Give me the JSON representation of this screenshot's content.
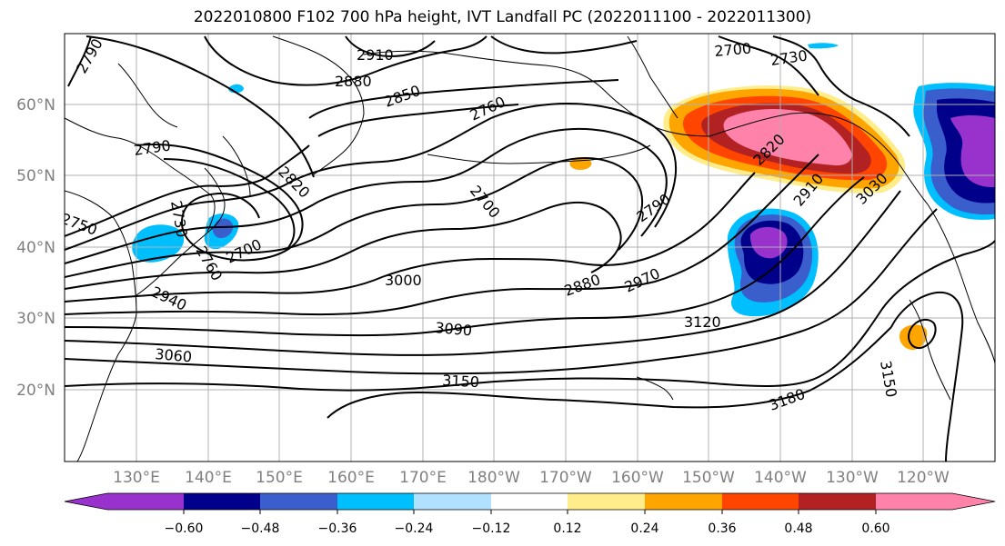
{
  "title": "2022010800 F102 700 hPa height, IVT Landfall PC (2022011100 - 2022011300)",
  "lat_labels": [
    "60°N",
    "50°N",
    "40°N",
    "30°N",
    "20°N"
  ],
  "lon_labels": [
    "130°E",
    "140°E",
    "150°E",
    "160°E",
    "170°E",
    "180°W",
    "170°W",
    "160°W",
    "150°W",
    "140°W",
    "130°W",
    "120°W"
  ],
  "contour_labels": [
    "2790",
    "2910",
    "2880",
    "2850",
    "2760",
    "2700",
    "2730",
    "2790",
    "2820",
    "2700",
    "2730",
    "2760",
    "2700",
    "3000",
    "2940",
    "2820",
    "2790",
    "2910",
    "3030",
    "2880",
    "2970",
    "3090",
    "3120",
    "3060",
    "3150",
    "3180",
    "3150",
    "2750"
  ],
  "colorbar": {
    "ticks": [
      "−0.60",
      "−0.48",
      "−0.36",
      "−0.24",
      "−0.12",
      "0.12",
      "0.24",
      "0.36",
      "0.48",
      "0.60"
    ],
    "colors": [
      "#9932cc",
      "#00008b",
      "#3a5fcd",
      "#00bfff",
      "#b0e2ff",
      "#ffffff",
      "#ffec8b",
      "#ffa500",
      "#ff4500",
      "#b22222",
      "#ff82ab",
      "#ff82ab"
    ]
  },
  "colors": {
    "contour": "#000000",
    "coast": "#000000",
    "grid": "#b0b0b0",
    "tick_label": "#808080"
  }
}
